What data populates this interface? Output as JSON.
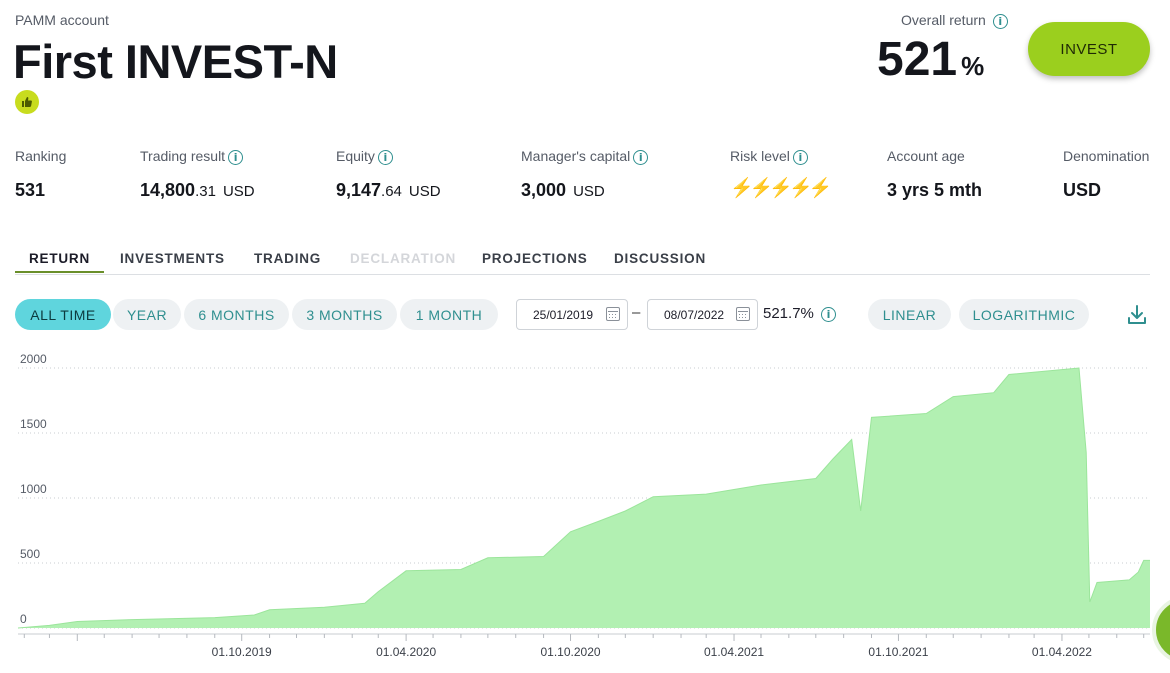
{
  "header": {
    "account_type": "PAMM account",
    "account_name": "First INVEST-N",
    "like_icon": "thumbs-up-icon",
    "overall_return_label": "Overall return",
    "overall_return_value": "521",
    "overall_return_unit": "%",
    "invest_label": "INVEST"
  },
  "stats": {
    "ranking": {
      "label": "Ranking",
      "value": "531"
    },
    "trading_result": {
      "label": "Trading result",
      "value_main": "14,800",
      "value_dec": ".31",
      "currency": "USD"
    },
    "equity": {
      "label": "Equity",
      "value_main": "9,147",
      "value_dec": ".64",
      "currency": "USD"
    },
    "managers_capital": {
      "label": "Manager's capital",
      "value_main": "3,000",
      "currency": "USD"
    },
    "risk_level": {
      "label": "Risk level",
      "level": 4,
      "max": 5
    },
    "account_age": {
      "label": "Account age",
      "value": "3 yrs 5 mth"
    },
    "denomination": {
      "label": "Denomination",
      "value": "USD"
    }
  },
  "tabs": [
    {
      "label": "RETURN",
      "state": "active"
    },
    {
      "label": "INVESTMENTS",
      "state": "normal"
    },
    {
      "label": "TRADING",
      "state": "normal"
    },
    {
      "label": "DECLARATION",
      "state": "disabled"
    },
    {
      "label": "PROJECTIONS",
      "state": "normal"
    },
    {
      "label": "DISCUSSION",
      "state": "normal"
    }
  ],
  "filters": {
    "periods": [
      "ALL TIME",
      "YEAR",
      "6 MONTHS",
      "3 MONTHS",
      "1 MONTH"
    ],
    "active_period": "ALL TIME",
    "date_from": "25/01/2019",
    "date_to": "08/07/2022",
    "range_return": "521.7%",
    "scales": [
      "LINEAR",
      "LOGARITHMIC"
    ]
  },
  "colors": {
    "accent_green": "#9bcf1e",
    "active_pill": "#5fd5dd",
    "chart_fill": "#b2f0b2",
    "chart_line": "#9be59b",
    "risk_on": "#ff5a1f",
    "risk_off": "#c8c8c8"
  },
  "chart_data": {
    "type": "area",
    "xlabel": "",
    "ylabel": "",
    "ylim": [
      0,
      2000
    ],
    "ytick_labels": [
      "0",
      "500",
      "1000",
      "1500",
      "2000"
    ],
    "xtick_labels": [
      "01.10.2019",
      "01.04.2020",
      "01.10.2020",
      "01.04.2021",
      "01.10.2021",
      "01.04.2022"
    ],
    "xlim": [
      "2019-01-25",
      "2022-07-08"
    ],
    "grid": true,
    "points": [
      {
        "x": "2019-01-25",
        "y": 0
      },
      {
        "x": "2019-03-01",
        "y": 20
      },
      {
        "x": "2019-04-01",
        "y": 50
      },
      {
        "x": "2019-06-01",
        "y": 65
      },
      {
        "x": "2019-09-01",
        "y": 80
      },
      {
        "x": "2019-10-15",
        "y": 100
      },
      {
        "x": "2019-11-01",
        "y": 140
      },
      {
        "x": "2020-01-01",
        "y": 160
      },
      {
        "x": "2020-02-15",
        "y": 190
      },
      {
        "x": "2020-03-01",
        "y": 280
      },
      {
        "x": "2020-04-01",
        "y": 440
      },
      {
        "x": "2020-06-01",
        "y": 450
      },
      {
        "x": "2020-07-01",
        "y": 540
      },
      {
        "x": "2020-09-01",
        "y": 550
      },
      {
        "x": "2020-10-01",
        "y": 740
      },
      {
        "x": "2020-11-01",
        "y": 820
      },
      {
        "x": "2020-12-01",
        "y": 900
      },
      {
        "x": "2021-01-01",
        "y": 1010
      },
      {
        "x": "2021-03-01",
        "y": 1030
      },
      {
        "x": "2021-05-01",
        "y": 1100
      },
      {
        "x": "2021-07-01",
        "y": 1150
      },
      {
        "x": "2021-07-20",
        "y": 1300
      },
      {
        "x": "2021-08-10",
        "y": 1450
      },
      {
        "x": "2021-08-20",
        "y": 900
      },
      {
        "x": "2021-09-01",
        "y": 1620
      },
      {
        "x": "2021-11-01",
        "y": 1650
      },
      {
        "x": "2021-12-01",
        "y": 1780
      },
      {
        "x": "2022-01-15",
        "y": 1810
      },
      {
        "x": "2022-02-01",
        "y": 1950
      },
      {
        "x": "2022-04-20",
        "y": 2000
      },
      {
        "x": "2022-04-28",
        "y": 1350
      },
      {
        "x": "2022-05-02",
        "y": 200
      },
      {
        "x": "2022-05-10",
        "y": 350
      },
      {
        "x": "2022-06-15",
        "y": 370
      },
      {
        "x": "2022-06-25",
        "y": 430
      },
      {
        "x": "2022-07-01",
        "y": 520
      },
      {
        "x": "2022-07-08",
        "y": 520
      }
    ]
  }
}
